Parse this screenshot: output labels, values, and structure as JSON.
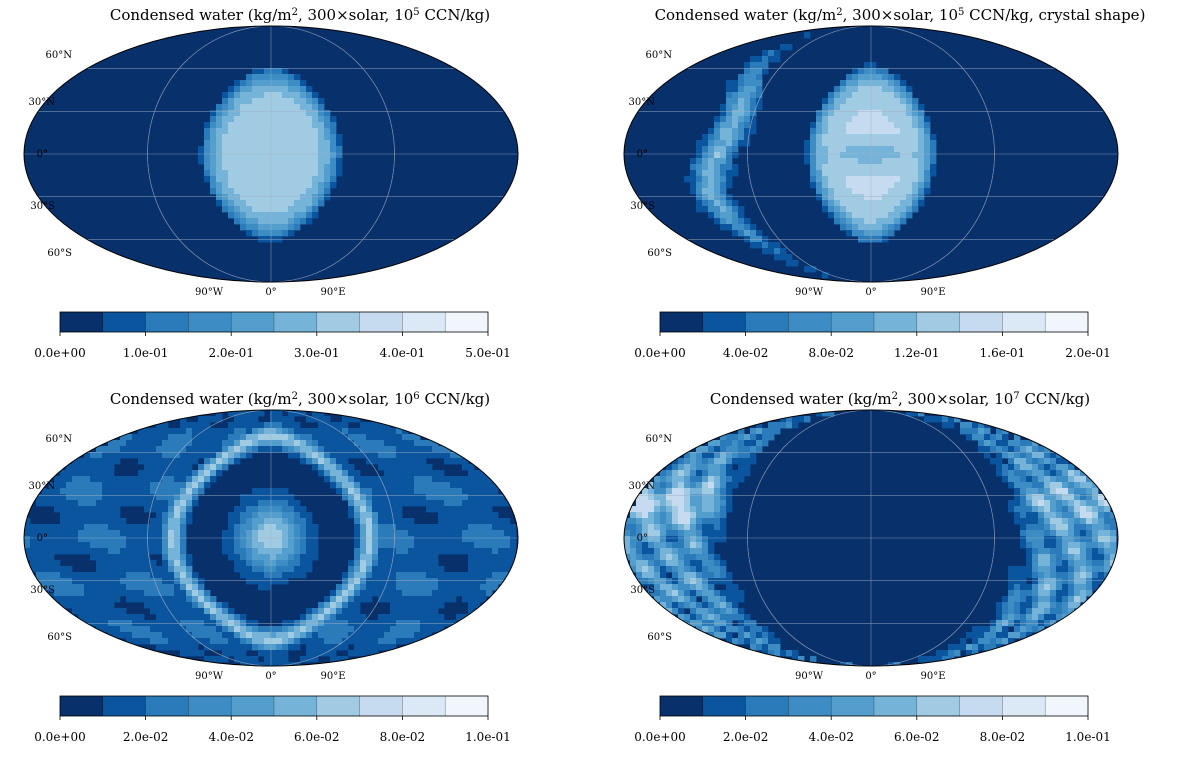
{
  "chart_data": [
    {
      "type": "contour-map",
      "title": {
        "prefix": "Condensed water (kg/m",
        "sq": "2",
        "mid": ", 300×solar, 10",
        "exp": "5",
        "suffix": " CCN/kg)"
      },
      "colormap": "Blues",
      "levels": [
        0.0,
        0.05,
        0.1,
        0.15,
        0.2,
        0.25,
        0.3,
        0.35,
        0.4,
        0.45,
        0.5
      ],
      "colorbar_ticks": [
        "0.0e+00",
        "1.0e-01",
        "2.0e-01",
        "3.0e-01",
        "4.0e-01",
        "5.0e-01"
      ],
      "lat_labels": [
        "60°N",
        "30°N",
        "0°",
        "30°S",
        "60°S"
      ],
      "lon_labels": [
        "90°W",
        "0°",
        "90°E"
      ],
      "pattern": "dayside-blob",
      "level_max_index": 6
    },
    {
      "type": "contour-map",
      "title": {
        "prefix": "Condensed water (kg/m",
        "sq": "2",
        "mid": ", 300×solar, 10",
        "exp": "5",
        "suffix": " CCN/kg, crystal shape)"
      },
      "colormap": "Blues",
      "levels": [
        0.0,
        0.02,
        0.04,
        0.06,
        0.08,
        0.1,
        0.12,
        0.14,
        0.16,
        0.18,
        0.2
      ],
      "colorbar_ticks": [
        "0.0e+00",
        "4.0e-02",
        "8.0e-02",
        "1.2e-01",
        "1.6e-01",
        "2.0e-01"
      ],
      "lat_labels": [
        "60°N",
        "30°N",
        "0°",
        "30°S",
        "60°S"
      ],
      "lon_labels": [
        "90°W",
        "0°",
        "90°E"
      ],
      "pattern": "dayside-blob-with-west-band",
      "level_max_index": 7
    },
    {
      "type": "contour-map",
      "title": {
        "prefix": "Condensed water (kg/m",
        "sq": "2",
        "mid": ", 300×solar, 10",
        "exp": "6",
        "suffix": " CCN/kg)"
      },
      "colormap": "Blues",
      "levels": [
        0.0,
        0.01,
        0.02,
        0.03,
        0.04,
        0.05,
        0.06,
        0.07,
        0.08,
        0.09,
        0.1
      ],
      "colorbar_ticks": [
        "0.0e+00",
        "2.0e-02",
        "4.0e-02",
        "6.0e-02",
        "8.0e-02",
        "1.0e-01"
      ],
      "lat_labels": [
        "60°N",
        "30°N",
        "0°",
        "30°S",
        "60°S"
      ],
      "lon_labels": [
        "90°W",
        "0°",
        "90°E"
      ],
      "pattern": "ring-and-core",
      "level_max_index": 6
    },
    {
      "type": "contour-map",
      "title": {
        "prefix": "Condensed water (kg/m",
        "sq": "2",
        "mid": ", 300×solar, 10",
        "exp": "7",
        "suffix": " CCN/kg)"
      },
      "colormap": "Blues",
      "levels": [
        0.0,
        0.01,
        0.02,
        0.03,
        0.04,
        0.05,
        0.06,
        0.07,
        0.08,
        0.09,
        0.1
      ],
      "colorbar_ticks": [
        "0.0e+00",
        "2.0e-02",
        "4.0e-02",
        "6.0e-02",
        "8.0e-02",
        "1.0e-01"
      ],
      "lat_labels": [
        "60°N",
        "30°N",
        "0°",
        "30°S",
        "60°S"
      ],
      "lon_labels": [
        "90°W",
        "0°",
        "90°E"
      ],
      "pattern": "nightside-clouds",
      "level_max_index": 7
    }
  ],
  "palette": [
    "#08306b",
    "#0b559f",
    "#2b7bba",
    "#3d8dc4",
    "#539ecd",
    "#75b4d8",
    "#a0cbe2",
    "#c6dbef",
    "#dbe9f6",
    "#f0f6fc"
  ]
}
